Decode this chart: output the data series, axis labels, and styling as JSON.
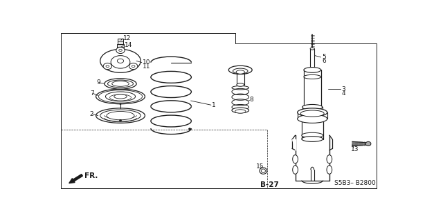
{
  "bg_color": "#ffffff",
  "line_color": "#1a1a1a",
  "fig_width": 6.4,
  "fig_height": 3.19,
  "dpi": 100,
  "page_label": "B-27",
  "diagram_code": "S5B3– B2800",
  "direction_label": "FR."
}
